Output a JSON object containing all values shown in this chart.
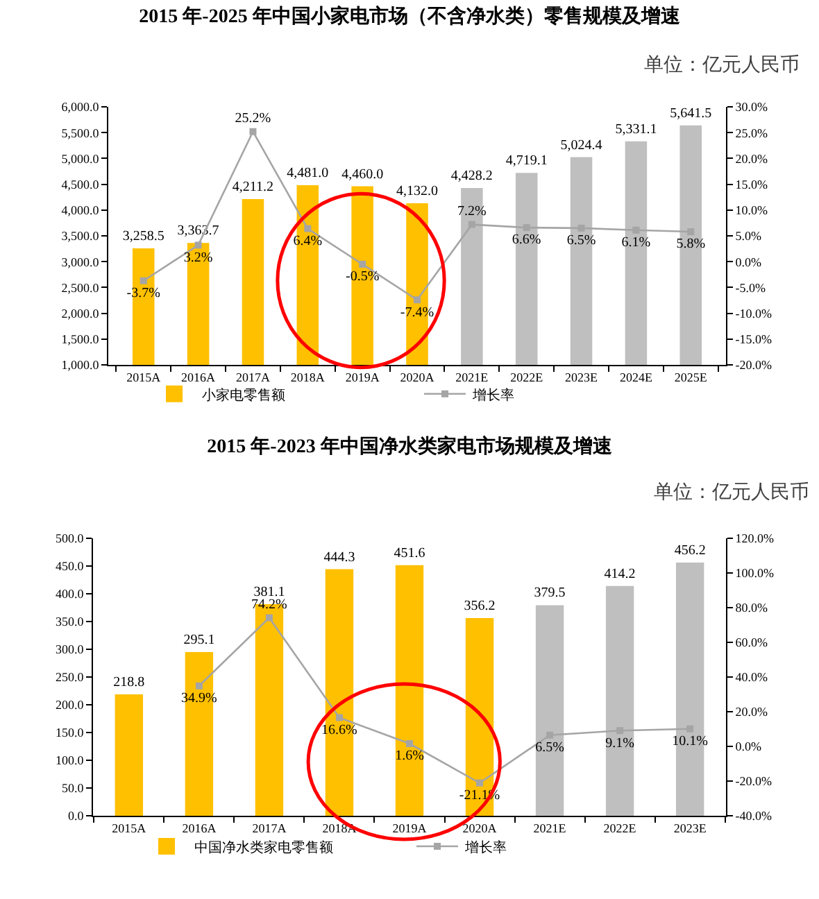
{
  "chart_data": [
    {
      "type": "bar",
      "title": "2015 年-2025 年中国小家电市场（不含净水类）零售规模及增速",
      "subtitle": "单位：亿元人民币",
      "categories": [
        "2015A",
        "2016A",
        "2017A",
        "2018A",
        "2019A",
        "2020A",
        "2021E",
        "2022E",
        "2023E",
        "2024E",
        "2025E"
      ],
      "series": [
        {
          "name": "小家电零售额",
          "colors": [
            "#ffc000",
            "#ffc000",
            "#ffc000",
            "#ffc000",
            "#ffc000",
            "#ffc000",
            "#bfbfbf",
            "#bfbfbf",
            "#bfbfbf",
            "#bfbfbf",
            "#bfbfbf"
          ],
          "values": [
            3258.5,
            3363.7,
            4211.2,
            4481.0,
            4460.0,
            4132.0,
            4428.2,
            4719.1,
            5024.4,
            5331.1,
            5641.5
          ],
          "value_labels": [
            "3,258.5",
            "3,363.7",
            "4,211.2",
            "4,481.0",
            "4,460.0",
            "4,132.0",
            "4,428.2",
            "4,719.1",
            "5,024.4",
            "5,331.1",
            "5,641.5"
          ]
        },
        {
          "name": "增长率",
          "type": "line",
          "axis": "y2",
          "color": "#a5a5a5",
          "values": [
            -3.7,
            3.2,
            25.2,
            6.4,
            -0.5,
            -7.4,
            7.2,
            6.6,
            6.5,
            6.1,
            5.8
          ],
          "value_labels": [
            "-3.7%",
            "3.2%",
            "25.2%",
            "6.4%",
            "-0.5%",
            "-7.4%",
            "7.2%",
            "6.6%",
            "6.5%",
            "6.1%",
            "5.8%"
          ]
        }
      ],
      "ylim": [
        1000,
        6000
      ],
      "yticks": [
        {
          "value": 1000,
          "label": "1,000.0"
        },
        {
          "value": 1500,
          "label": "1,500.0"
        },
        {
          "value": 2000,
          "label": "2,000.0"
        },
        {
          "value": 2500,
          "label": "2,500.0"
        },
        {
          "value": 3000,
          "label": "3,000.0"
        },
        {
          "value": 3500,
          "label": "3,500.0"
        },
        {
          "value": 4000,
          "label": "4,000.0"
        },
        {
          "value": 4500,
          "label": "4,500.0"
        },
        {
          "value": 5000,
          "label": "5,000.0"
        },
        {
          "value": 5500,
          "label": "5,500.0"
        },
        {
          "value": 6000,
          "label": "6,000.0"
        }
      ],
      "y2lim": [
        -20,
        30
      ],
      "y2ticks": [
        {
          "value": -20,
          "label": "-20.0%"
        },
        {
          "value": -15,
          "label": "-15.0%"
        },
        {
          "value": -10,
          "label": "-10.0%"
        },
        {
          "value": -5,
          "label": "-5.0%"
        },
        {
          "value": 0,
          "label": "0.0%"
        },
        {
          "value": 5,
          "label": "5.0%"
        },
        {
          "value": 10,
          "label": "10.0%"
        },
        {
          "value": 15,
          "label": "15.0%"
        },
        {
          "value": 20,
          "label": "20.0%"
        },
        {
          "value": 25,
          "label": "25.0%"
        },
        {
          "value": 30,
          "label": "30.0%"
        }
      ],
      "marker": "square",
      "legend": "bottom"
    },
    {
      "type": "bar",
      "title": "2015 年-2023 年中国净水类家电市场规模及增速",
      "subtitle": "单位：亿元人民币",
      "categories": [
        "2015A",
        "2016A",
        "2017A",
        "2018A",
        "2019A",
        "2020A",
        "2021E",
        "2022E",
        "2023E"
      ],
      "series": [
        {
          "name": "中国净水类家电零售额",
          "colors": [
            "#ffc000",
            "#ffc000",
            "#ffc000",
            "#ffc000",
            "#ffc000",
            "#ffc000",
            "#bfbfbf",
            "#bfbfbf",
            "#bfbfbf"
          ],
          "values": [
            218.8,
            295.1,
            381.1,
            444.3,
            451.6,
            356.2,
            379.5,
            414.2,
            456.2
          ],
          "value_labels": [
            "218.8",
            "295.1",
            "381.1",
            "444.3",
            "451.6",
            "356.2",
            "379.5",
            "414.2",
            "456.2"
          ]
        },
        {
          "name": "增长率",
          "type": "line",
          "axis": "y2",
          "color": "#a5a5a5",
          "values": [
            null,
            34.9,
            74.2,
            16.6,
            1.6,
            -21.1,
            6.5,
            9.1,
            10.1
          ],
          "value_labels": [
            null,
            "34.9%",
            "74.2%",
            "16.6%",
            "1.6%",
            "-21.1%",
            "6.5%",
            "9.1%",
            "10.1%"
          ]
        }
      ],
      "ylim": [
        0,
        500
      ],
      "yticks": [
        {
          "value": 0,
          "label": "0.0"
        },
        {
          "value": 50,
          "label": "50.0"
        },
        {
          "value": 100,
          "label": "100.0"
        },
        {
          "value": 150,
          "label": "150.0"
        },
        {
          "value": 200,
          "label": "200.0"
        },
        {
          "value": 250,
          "label": "250.0"
        },
        {
          "value": 300,
          "label": "300.0"
        },
        {
          "value": 350,
          "label": "350.0"
        },
        {
          "value": 400,
          "label": "400.0"
        },
        {
          "value": 450,
          "label": "450.0"
        },
        {
          "value": 500,
          "label": "500.0"
        }
      ],
      "y2lim": [
        -40,
        120
      ],
      "y2ticks": [
        {
          "value": -40,
          "label": "-40.0%"
        },
        {
          "value": -20,
          "label": "-20.0%"
        },
        {
          "value": 0,
          "label": "0.0%"
        },
        {
          "value": 20,
          "label": "20.0%"
        },
        {
          "value": 40,
          "label": "40.0%"
        },
        {
          "value": 60,
          "label": "60.0%"
        },
        {
          "value": 80,
          "label": "80.0%"
        },
        {
          "value": 100,
          "label": "100.0%"
        },
        {
          "value": 120,
          "label": "120.0%"
        }
      ],
      "marker": "square",
      "legend": "bottom"
    }
  ]
}
